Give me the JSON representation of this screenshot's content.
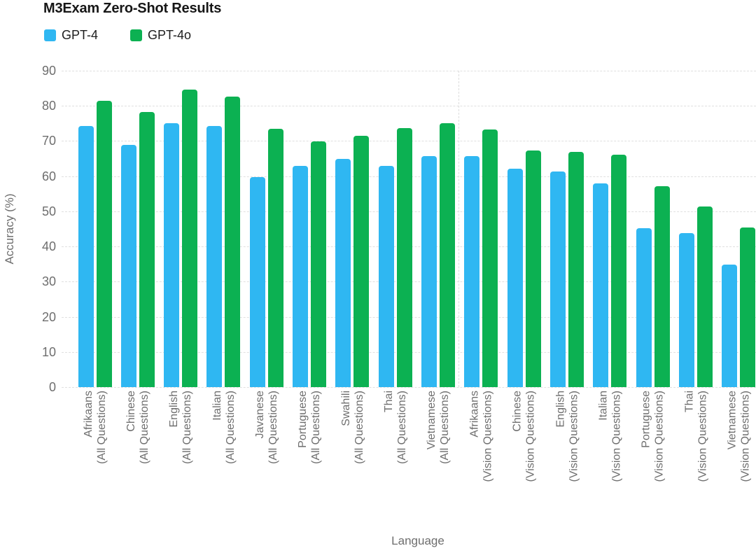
{
  "title": "M3Exam Zero-Shot Results",
  "legend": {
    "items": [
      {
        "label": "GPT-4",
        "color": "#2fb7f2"
      },
      {
        "label": "GPT-4o",
        "color": "#0cb152"
      }
    ]
  },
  "axes": {
    "y_title": "Accuracy (%)",
    "x_title": "Language",
    "yticks": [
      0,
      10,
      20,
      30,
      40,
      50,
      60,
      70,
      80,
      90
    ]
  },
  "colors": {
    "gpt4_blue": "#2fb7f2",
    "gpt4o_green": "#0cb152",
    "gridline": "#e0e0e0",
    "axis_text": "#6e6e6e",
    "title_text": "#161616"
  },
  "chart_data": {
    "type": "bar",
    "title": "M3Exam Zero-Shot Results",
    "xlabel": "Language",
    "ylabel": "Accuracy (%)",
    "ylim": [
      0,
      90
    ],
    "ytick_step": 10,
    "grid": "horizontal dashed",
    "legend_position": "top-left",
    "categories": [
      {
        "language": "Afrikaans",
        "subset": "(All Questions)"
      },
      {
        "language": "Chinese",
        "subset": "(All Questions)"
      },
      {
        "language": "English",
        "subset": "(All Questions)"
      },
      {
        "language": "Italian",
        "subset": "(All Questions)"
      },
      {
        "language": "Javanese",
        "subset": "(All Questions)"
      },
      {
        "language": "Portuguese",
        "subset": "(All Questions)"
      },
      {
        "language": "Swahili",
        "subset": "(All Questions)"
      },
      {
        "language": "Thai",
        "subset": "(All Questions)"
      },
      {
        "language": "Vietnamese",
        "subset": "(All Questions)"
      },
      {
        "language": "Afrikaans",
        "subset": "(Vision Questions)"
      },
      {
        "language": "Chinese",
        "subset": "(Vision Questions)"
      },
      {
        "language": "English",
        "subset": "(Vision Questions)"
      },
      {
        "language": "Italian",
        "subset": "(Vision Questions)"
      },
      {
        "language": "Portuguese",
        "subset": "(Vision Questions)"
      },
      {
        "language": "Thai",
        "subset": "(Vision Questions)"
      },
      {
        "language": "Vietnamese",
        "subset": "(Vision Questions)"
      }
    ],
    "series": [
      {
        "name": "GPT-4",
        "color": "#2fb7f2",
        "values": [
          74.3,
          68.9,
          75.1,
          74.2,
          59.7,
          63.0,
          64.9,
          62.9,
          65.7,
          65.8,
          62.1,
          61.4,
          58.0,
          45.2,
          43.9,
          34.9
        ]
      },
      {
        "name": "GPT-4o",
        "color": "#0cb152",
        "values": [
          81.4,
          78.2,
          84.6,
          82.6,
          73.4,
          69.8,
          71.4,
          73.6,
          75.0,
          73.3,
          67.4,
          67.0,
          66.1,
          57.2,
          51.4,
          45.3
        ]
      }
    ],
    "section_separator_between": [
      "Vietnamese (All Questions)",
      "Afrikaans (Vision Questions)"
    ]
  }
}
